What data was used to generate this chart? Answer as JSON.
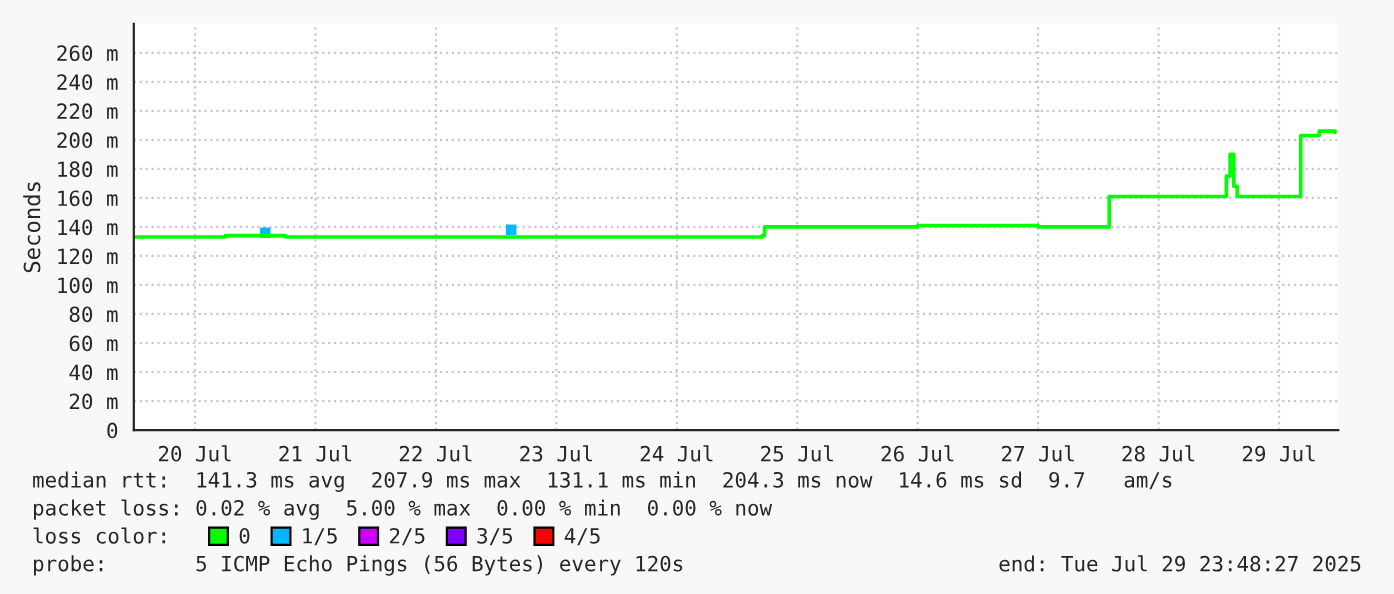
{
  "chart_data": {
    "type": "line",
    "ylabel": "Seconds",
    "legend_title": "loss color:",
    "legend": "bottom",
    "grid": true,
    "xlim": [
      "2025-07-19T23:48",
      "2025-07-29T23:48"
    ],
    "xticks": [
      {
        "value": "2025-07-20T12:00",
        "label": "20 Jul"
      },
      {
        "value": "2025-07-21T12:00",
        "label": "21 Jul"
      },
      {
        "value": "2025-07-22T12:00",
        "label": "22 Jul"
      },
      {
        "value": "2025-07-23T12:00",
        "label": "23 Jul"
      },
      {
        "value": "2025-07-24T12:00",
        "label": "24 Jul"
      },
      {
        "value": "2025-07-25T12:00",
        "label": "25 Jul"
      },
      {
        "value": "2025-07-26T12:00",
        "label": "26 Jul"
      },
      {
        "value": "2025-07-27T12:00",
        "label": "27 Jul"
      },
      {
        "value": "2025-07-28T12:00",
        "label": "28 Jul"
      },
      {
        "value": "2025-07-29T12:00",
        "label": "29 Jul"
      }
    ],
    "ylim": [
      0,
      280
    ],
    "yticks": [
      0,
      {
        "value": 20,
        "label": "20 m"
      },
      {
        "value": 40,
        "label": "40 m"
      },
      {
        "value": 60,
        "label": "60 m"
      },
      {
        "value": 80,
        "label": "80 m"
      },
      {
        "value": 100,
        "label": "100 m"
      },
      {
        "value": 120,
        "label": "120 m"
      },
      {
        "value": 140,
        "label": "140 m"
      },
      {
        "value": 160,
        "label": "160 m"
      },
      {
        "value": 180,
        "label": "180 m"
      },
      {
        "value": 200,
        "label": "200 m"
      },
      {
        "value": 220,
        "label": "220 m"
      },
      {
        "value": 240,
        "label": "240 m"
      },
      {
        "value": 260,
        "label": "260 m"
      }
    ],
    "series": [
      {
        "name": "0",
        "color": "#00ff00",
        "x": [
          "2025-07-19T23:48",
          "2025-07-20T18:00",
          "2025-07-21T06:00",
          "2025-07-22T18:00",
          "2025-07-25T05:00",
          "2025-07-25T05:30",
          "2025-07-26T12:00",
          "2025-07-27T12:00",
          "2025-07-28T01:50",
          "2025-07-28T02:10",
          "2025-07-29T00:40",
          "2025-07-29T01:30",
          "2025-07-29T02:15",
          "2025-07-29T03:00",
          "2025-07-29T03:40",
          "2025-07-29T16:00",
          "2025-07-29T16:20",
          "2025-07-29T20:00",
          "2025-07-29T23:10"
        ],
        "values": [
          133,
          134,
          133,
          133,
          134,
          140,
          141,
          140,
          140,
          161,
          161,
          175,
          190,
          168,
          161,
          161,
          203,
          206,
          205
        ]
      },
      {
        "name": "1/5",
        "color": "#00b8ff",
        "type": "scatter",
        "marker": "square",
        "x": [
          "2025-07-21T02:00",
          "2025-07-23T03:00"
        ],
        "values": [
          136,
          138
        ]
      },
      {
        "name": "2/5",
        "color": "#cc00ff"
      },
      {
        "name": "3/5",
        "color": "#7e00ff"
      },
      {
        "name": "4/5",
        "color": "#ff0000"
      }
    ],
    "annotations": [
      "median rtt:  141.3 ms avg  207.9 ms max  131.1 ms min  204.3 ms now  14.6 ms sd  9.7   am/s",
      "packet loss: 0.02 % avg  5.00 % max  0.00 % min  0.00 % now",
      "probe:       5 ICMP Echo Pings (56 Bytes) every 120s",
      "end: Tue Jul 29 23:48:27 2025"
    ]
  }
}
